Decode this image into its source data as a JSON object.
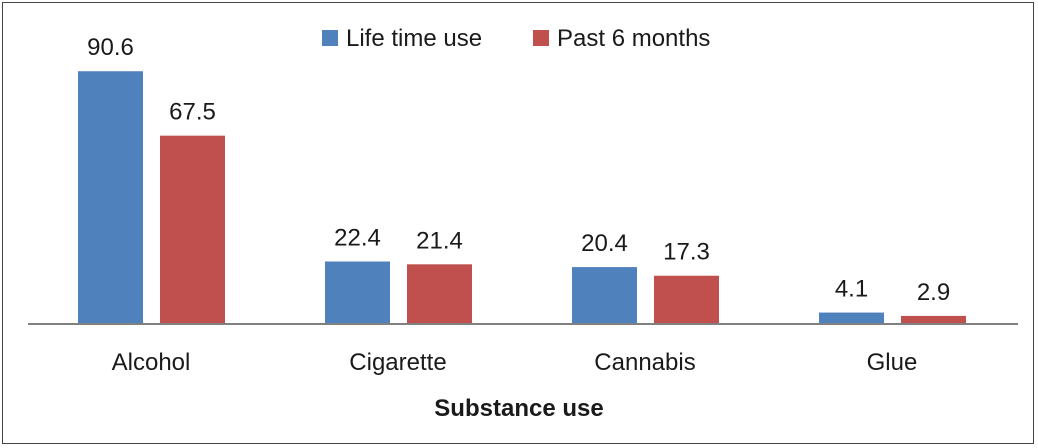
{
  "chart_data": {
    "type": "bar",
    "categories": [
      "Alcohol",
      "Cigarette",
      "Cannabis",
      "Glue"
    ],
    "series": [
      {
        "name": "Life time use",
        "values": [
          90.6,
          22.4,
          20.4,
          4.1
        ],
        "color": "#4F81BD"
      },
      {
        "name": "Past 6 months",
        "values": [
          67.5,
          21.4,
          17.3,
          2.9
        ],
        "color": "#C0504D"
      }
    ],
    "xlabel": "Substance use",
    "ylabel": "",
    "ylim": [
      0,
      100
    ],
    "grid": false,
    "legend_position": "top-center",
    "data_labels": true
  }
}
